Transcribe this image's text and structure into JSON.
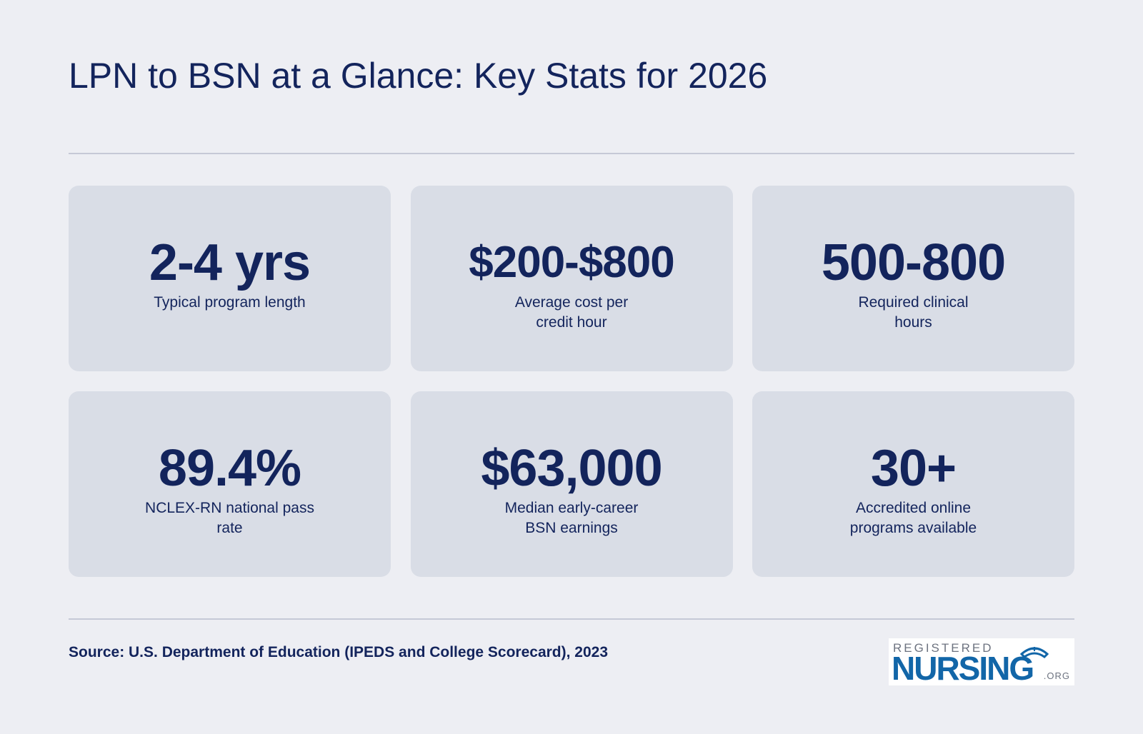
{
  "title": "LPN to BSN at a Glance: Key Stats for 2026",
  "stats": [
    {
      "value": "2-4 yrs",
      "label": "Typical program length"
    },
    {
      "value": "$200-$800",
      "label": "Average cost per credit hour"
    },
    {
      "value": "500-800",
      "label": "Required clinical hours"
    },
    {
      "value": "89.4%",
      "label": "NCLEX-RN national pass rate"
    },
    {
      "value": "$63,000",
      "label": "Median early-career BSN earnings"
    },
    {
      "value": "30+",
      "label": "Accredited online programs available"
    }
  ],
  "source": "Source: U.S. Department of Education (IPEDS and College Scorecard), 2023",
  "logo": {
    "top": "REGISTERED",
    "main": "NURSING",
    "suffix": ".ORG"
  },
  "colors": {
    "background": "#edeef3",
    "card": "#d9dde6",
    "text": "#13245c",
    "logo_blue": "#1266a8"
  }
}
